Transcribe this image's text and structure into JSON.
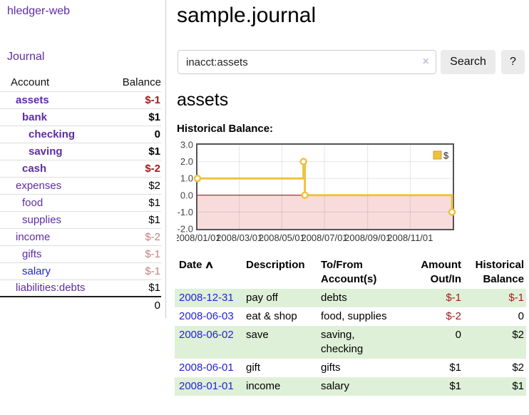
{
  "app": {
    "title": "hledger-web"
  },
  "colors": {
    "link_purple": "#5e2ca5",
    "link_blue": "#2222dd",
    "negative_strong": "#9e1b1b",
    "negative_muted": "#c28080",
    "row_stripe_green": "#dff0d8",
    "chart_line_yellow": "#edc240",
    "chart_zero_line": "#8b0000",
    "chart_negative_fill": "#f8dcdc"
  },
  "sidebar": {
    "journal_label": "Journal",
    "accounts_table": {
      "headers": {
        "account": "Account",
        "balance": "Balance"
      },
      "rows": [
        {
          "name": "assets",
          "balance": "$-1",
          "depth": 1,
          "bold": true
        },
        {
          "name": "bank",
          "balance": "$1",
          "depth": 2,
          "bold": true
        },
        {
          "name": "checking",
          "balance": "0",
          "depth": 3,
          "bold": true
        },
        {
          "name": "saving",
          "balance": "$1",
          "depth": 3,
          "bold": true
        },
        {
          "name": "cash",
          "balance": "$-2",
          "depth": 2,
          "bold": true
        },
        {
          "name": "expenses",
          "balance": "$2",
          "depth": 1,
          "bold": false
        },
        {
          "name": "food",
          "balance": "$1",
          "depth": 2,
          "bold": false
        },
        {
          "name": "supplies",
          "balance": "$1",
          "depth": 2,
          "bold": false
        },
        {
          "name": "income",
          "balance": "$-2",
          "depth": 1,
          "bold": false
        },
        {
          "name": "gifts",
          "balance": "$-1",
          "depth": 2,
          "bold": false
        },
        {
          "name": "salary",
          "balance": "$-1",
          "depth": 2,
          "bold": false,
          "unvisited": true
        },
        {
          "name": "liabilities:debts",
          "balance": "$1",
          "depth": 1,
          "bold": false
        }
      ],
      "total": "0"
    }
  },
  "main": {
    "title": "sample.journal",
    "search": {
      "value": "inacct:assets",
      "clear_icon": "×",
      "button_label": "Search",
      "help_label": "?"
    },
    "account_heading": "assets",
    "chart_label": "Historical Balance:"
  },
  "chart_data": {
    "type": "line",
    "step": true,
    "title": "Historical Balance",
    "series": [
      {
        "name": "$",
        "points": [
          [
            "2008-01-01",
            1
          ],
          [
            "2008-06-01",
            2
          ],
          [
            "2008-06-03",
            0
          ],
          [
            "2008-12-31",
            -1
          ]
        ]
      }
    ],
    "x_axis": {
      "start": "2008-01-01",
      "span_days": 366,
      "tick_labels": [
        "2008/01/01",
        "2008/03/01",
        "2008/05/01",
        "2008/07/01",
        "2008/09/01",
        "2008/11/01"
      ]
    },
    "y_ticks": [
      "3.0",
      "2.0",
      "1.0",
      "0.0",
      "-1.0",
      "-2.0"
    ],
    "ylim": [
      -2,
      3
    ],
    "grid": true,
    "negative_region_shaded": true,
    "legend": {
      "label": "$",
      "position": "top-right"
    }
  },
  "register_table": {
    "headers": [
      "Date",
      "Description",
      "To/From\nAccount(s)",
      "Amount\nOut/In",
      "Historical\nBalance"
    ],
    "sort_icon": "∧",
    "rows": [
      {
        "date": "2008-12-31",
        "description": "pay off",
        "accounts": "debts",
        "amount": "$-1",
        "balance": "$-1"
      },
      {
        "date": "2008-06-03",
        "description": "eat & shop",
        "accounts": "food, supplies",
        "amount": "$-2",
        "balance": "0"
      },
      {
        "date": "2008-06-02",
        "description": "save",
        "accounts": "saving, checking",
        "amount": "0",
        "balance": "$2"
      },
      {
        "date": "2008-06-01",
        "description": "gift",
        "accounts": "gifts",
        "amount": "$1",
        "balance": "$2"
      },
      {
        "date": "2008-01-01",
        "description": "income",
        "accounts": "salary",
        "amount": "$1",
        "balance": "$1"
      }
    ]
  }
}
